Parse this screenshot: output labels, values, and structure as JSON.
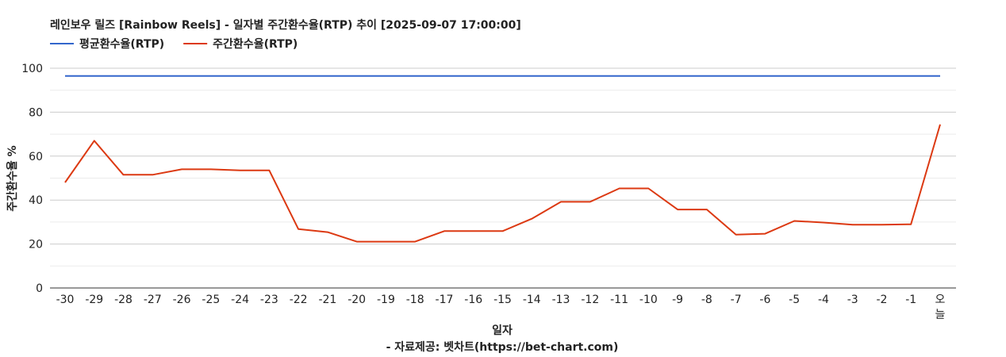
{
  "chart_data": {
    "type": "line",
    "title": "레인보우 릴즈 [Rainbow Reels] - 일자별 주간환수율(RTP) 추이 [2025-09-07 17:00:00]",
    "xlabel": "일자",
    "ylabel": "주간환수율 %",
    "credit": "- 자료제공: 벳차트(https://bet-chart.com)",
    "categories": [
      "-30",
      "-29",
      "-28",
      "-27",
      "-26",
      "-25",
      "-24",
      "-23",
      "-22",
      "-21",
      "-20",
      "-19",
      "-18",
      "-17",
      "-16",
      "-15",
      "-14",
      "-13",
      "-12",
      "-11",
      "-10",
      "-9",
      "-8",
      "-7",
      "-6",
      "-5",
      "-4",
      "-3",
      "-2",
      "-1",
      "오늘"
    ],
    "ylim": [
      0,
      100
    ],
    "yticks": [
      "0",
      "20",
      "40",
      "60",
      "80",
      "100"
    ],
    "grid": true,
    "legend_position": "top-left",
    "series": [
      {
        "name": "평균환수율(RTP)",
        "color": "#3366cc",
        "values": [
          96.5,
          96.5,
          96.5,
          96.5,
          96.5,
          96.5,
          96.5,
          96.5,
          96.5,
          96.5,
          96.5,
          96.5,
          96.5,
          96.5,
          96.5,
          96.5,
          96.5,
          96.5,
          96.5,
          96.5,
          96.5,
          96.5,
          96.5,
          96.5,
          96.5,
          96.5,
          96.5,
          96.5,
          96.5,
          96.5,
          96.5
        ]
      },
      {
        "name": "주간환수율(RTP)",
        "color": "#dc3912",
        "values": [
          48,
          67,
          51.5,
          51.5,
          54,
          54,
          53.5,
          53.5,
          26.8,
          25.4,
          21.1,
          21.1,
          21.1,
          25.9,
          25.9,
          25.9,
          31.5,
          39.2,
          39.2,
          45.3,
          45.3,
          35.7,
          35.7,
          24.3,
          24.7,
          30.5,
          29.8,
          28.8,
          28.8,
          29,
          74.4
        ]
      }
    ]
  }
}
